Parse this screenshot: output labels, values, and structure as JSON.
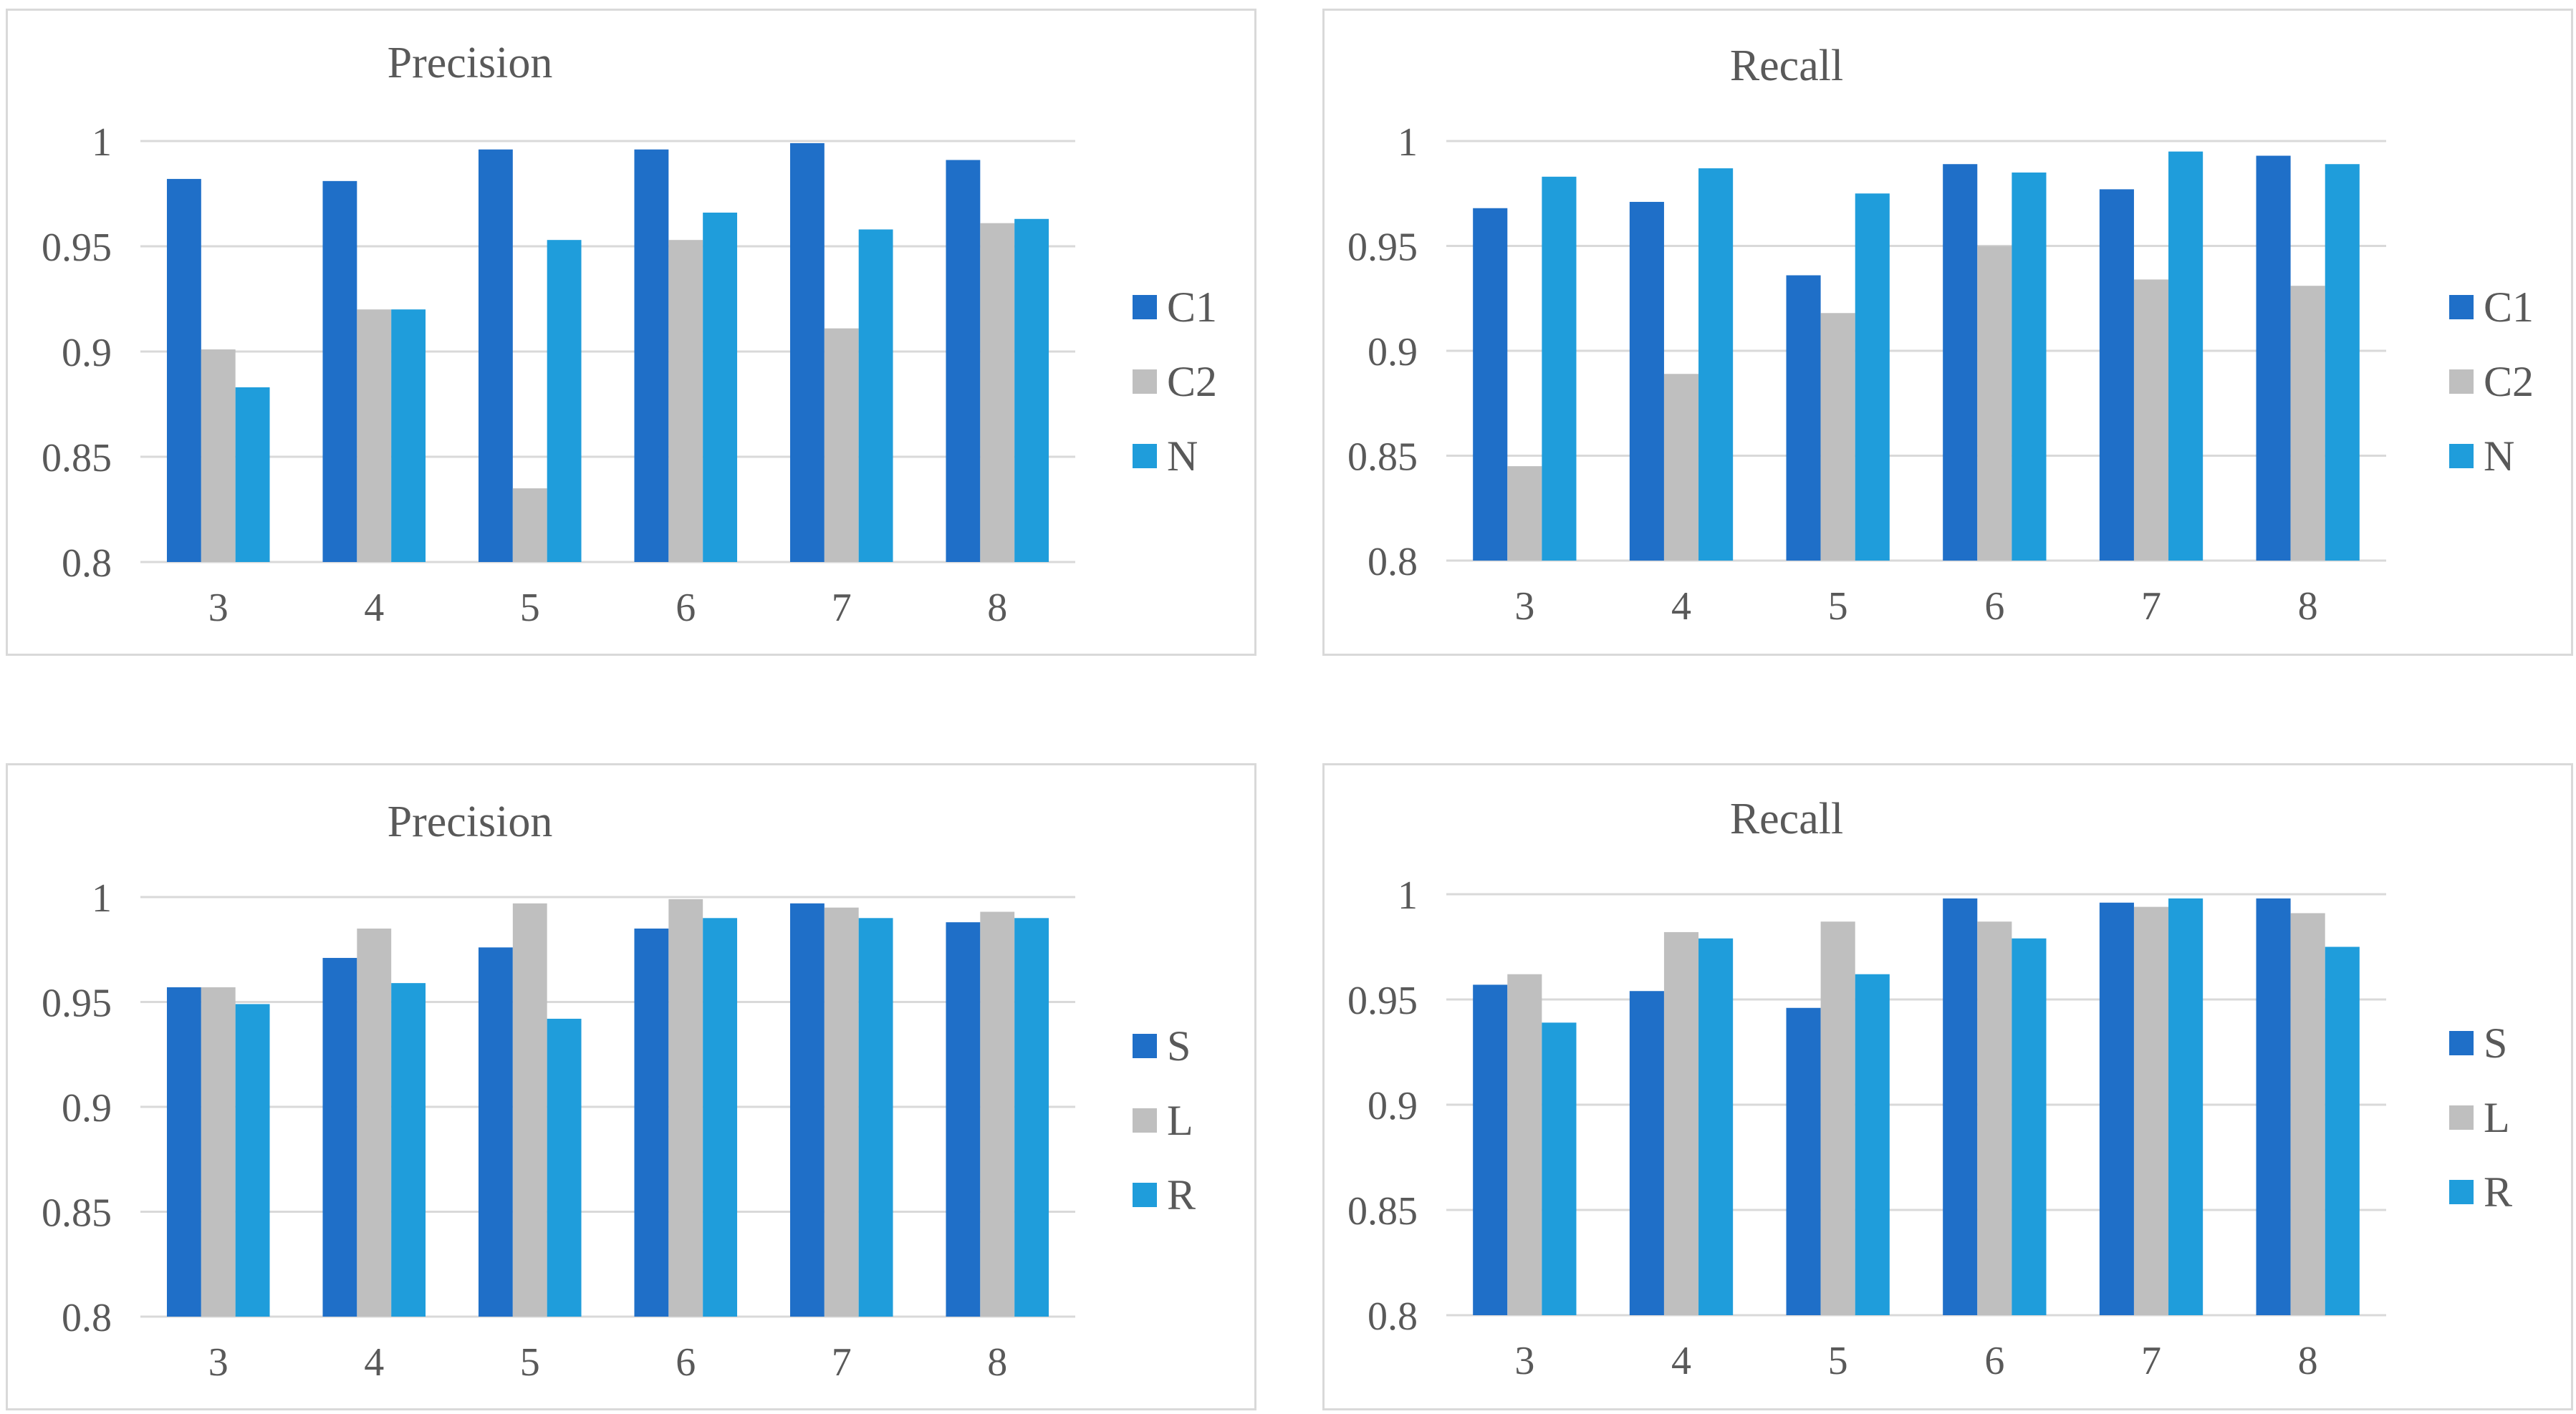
{
  "colors": {
    "series1": "#1f6fc8",
    "series2": "#bfbfbf",
    "series3": "#1f9ddb",
    "grid": "#d9d9d9",
    "text": "#595959"
  },
  "chart_data": [
    {
      "type": "bar",
      "title": "Precision",
      "categories": [
        "3",
        "4",
        "5",
        "6",
        "7",
        "8"
      ],
      "series": [
        {
          "name": "C1",
          "values": [
            0.982,
            0.981,
            0.996,
            0.996,
            0.999,
            0.991
          ]
        },
        {
          "name": "C2",
          "values": [
            0.901,
            0.92,
            0.835,
            0.953,
            0.911,
            0.961
          ]
        },
        {
          "name": "N",
          "values": [
            0.883,
            0.92,
            0.953,
            0.966,
            0.958,
            0.963
          ]
        }
      ],
      "yticks": [
        "0.8",
        "0.85",
        "0.9",
        "0.95",
        "1"
      ],
      "ylim": [
        0.8,
        1.0
      ],
      "legend": "right"
    },
    {
      "type": "bar",
      "title": "Recall",
      "categories": [
        "3",
        "4",
        "5",
        "6",
        "7",
        "8"
      ],
      "series": [
        {
          "name": "C1",
          "values": [
            0.968,
            0.971,
            0.936,
            0.989,
            0.977,
            0.993
          ]
        },
        {
          "name": "C2",
          "values": [
            0.845,
            0.889,
            0.918,
            0.95,
            0.934,
            0.931
          ]
        },
        {
          "name": "N",
          "values": [
            0.983,
            0.987,
            0.975,
            0.985,
            0.995,
            0.989
          ]
        }
      ],
      "yticks": [
        "0.8",
        "0.85",
        "0.9",
        "0.95",
        "1"
      ],
      "ylim": [
        0.8,
        1.0
      ],
      "legend": "right"
    },
    {
      "type": "bar",
      "title": "Precision",
      "categories": [
        "3",
        "4",
        "5",
        "6",
        "7",
        "8"
      ],
      "series": [
        {
          "name": "S",
          "values": [
            0.957,
            0.971,
            0.976,
            0.985,
            0.997,
            0.988
          ]
        },
        {
          "name": "L",
          "values": [
            0.957,
            0.985,
            0.997,
            0.999,
            0.995,
            0.993
          ]
        },
        {
          "name": "R",
          "values": [
            0.949,
            0.959,
            0.942,
            0.99,
            0.99,
            0.99
          ]
        }
      ],
      "yticks": [
        "0.8",
        "0.85",
        "0.9",
        "0.95",
        "1"
      ],
      "ylim": [
        0.8,
        1.0
      ],
      "legend": "right"
    },
    {
      "type": "bar",
      "title": "Recall",
      "categories": [
        "3",
        "4",
        "5",
        "6",
        "7",
        "8"
      ],
      "series": [
        {
          "name": "S",
          "values": [
            0.957,
            0.954,
            0.946,
            0.998,
            0.996,
            0.998
          ]
        },
        {
          "name": "L",
          "values": [
            0.962,
            0.982,
            0.987,
            0.987,
            0.994,
            0.991
          ]
        },
        {
          "name": "R",
          "values": [
            0.939,
            0.979,
            0.962,
            0.979,
            0.998,
            0.975
          ]
        }
      ],
      "yticks": [
        "0.8",
        "0.85",
        "0.9",
        "0.95",
        "1"
      ],
      "ylim": [
        0.8,
        1.0
      ],
      "legend": "right"
    }
  ]
}
